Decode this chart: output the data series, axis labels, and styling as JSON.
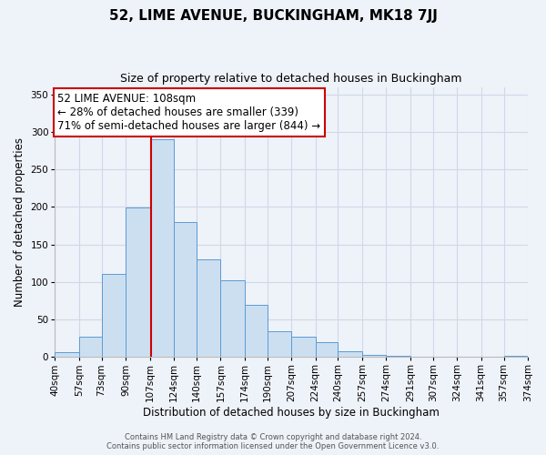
{
  "title": "52, LIME AVENUE, BUCKINGHAM, MK18 7JJ",
  "subtitle": "Size of property relative to detached houses in Buckingham",
  "xlabel": "Distribution of detached houses by size in Buckingham",
  "ylabel": "Number of detached properties",
  "bin_labels": [
    "40sqm",
    "57sqm",
    "73sqm",
    "90sqm",
    "107sqm",
    "124sqm",
    "140sqm",
    "157sqm",
    "174sqm",
    "190sqm",
    "207sqm",
    "224sqm",
    "240sqm",
    "257sqm",
    "274sqm",
    "291sqm",
    "307sqm",
    "324sqm",
    "341sqm",
    "357sqm",
    "374sqm"
  ],
  "bin_edges": [
    40,
    57,
    73,
    90,
    107,
    124,
    140,
    157,
    174,
    190,
    207,
    224,
    240,
    257,
    274,
    291,
    307,
    324,
    341,
    357,
    374
  ],
  "bar_heights": [
    7,
    27,
    111,
    199,
    290,
    180,
    130,
    102,
    70,
    35,
    27,
    20,
    8,
    3,
    2,
    1,
    1,
    0,
    0,
    2
  ],
  "bar_color": "#ccdff0",
  "bar_edge_color": "#5b9bd5",
  "vline_x": 108,
  "vline_color": "#cc0000",
  "ylim": [
    0,
    360
  ],
  "yticks": [
    0,
    50,
    100,
    150,
    200,
    250,
    300,
    350
  ],
  "annotation_line1": "52 LIME AVENUE: 108sqm",
  "annotation_line2": "← 28% of detached houses are smaller (339)",
  "annotation_line3": "71% of semi-detached houses are larger (844) →",
  "annotation_box_color": "#ffffff",
  "annotation_box_edge": "#cc0000",
  "footer_line1": "Contains HM Land Registry data © Crown copyright and database right 2024.",
  "footer_line2": "Contains public sector information licensed under the Open Government Licence v3.0.",
  "background_color": "#eef2f9",
  "grid_color": "#d0d8e8",
  "title_fontsize": 11,
  "subtitle_fontsize": 9,
  "ylabel_fontsize": 8.5,
  "xlabel_fontsize": 8.5,
  "tick_fontsize": 7.5,
  "annotation_fontsize": 8.5,
  "footer_fontsize": 6.0
}
